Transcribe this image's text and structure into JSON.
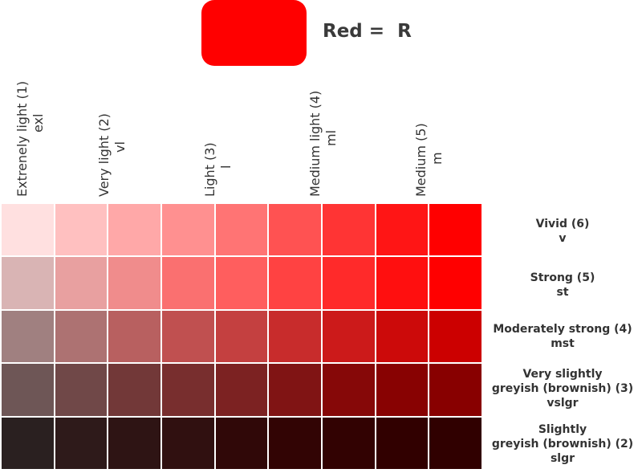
{
  "title": "Red =  R",
  "swatch_color": "#ff0000",
  "columns": [
    {
      "name": "Extrenely light (1)",
      "code": "exl"
    },
    {
      "name": "Very light (2)",
      "code": "vl"
    },
    {
      "name": "Light (3)",
      "code": "l"
    },
    {
      "name": "Medium light (4)",
      "code": "ml"
    },
    {
      "name": "Medium (5)",
      "code": "m"
    }
  ],
  "rows": [
    {
      "name": "Vivid (6)",
      "code": "v"
    },
    {
      "name": "Strong (5)",
      "code": "st"
    },
    {
      "name": "Moderately strong (4)",
      "code": "mst"
    },
    {
      "name_line1": "Very slightly",
      "name_line2": "greyish (brownish) (3)",
      "code": "vslgr"
    },
    {
      "name_line1": "Slightly",
      "name_line2": "greyish (brownish) (2)",
      "code": "slgr"
    }
  ],
  "grid_colors": [
    [
      "#ffe0e0",
      "#ffc0c0",
      "#ffa8a8",
      "#ff9090",
      "#ff7474",
      "#ff5252",
      "#ff3434",
      "#ff1515",
      "#ff0000"
    ],
    [
      "#d9b4b4",
      "#e8a0a0",
      "#f08c8c",
      "#fa7070",
      "#ff5e5e",
      "#ff4242",
      "#ff2a2a",
      "#ff0f0f",
      "#ff0000"
    ],
    [
      "#a08080",
      "#ad7272",
      "#b86060",
      "#c05050",
      "#c44040",
      "#c82c2c",
      "#cc1a1a",
      "#cc0a0a",
      "#cc0000"
    ],
    [
      "#6e5656",
      "#704848",
      "#723838",
      "#782e2e",
      "#7c2222",
      "#801414",
      "#860808",
      "#880202",
      "#880000"
    ],
    [
      "#2a2020",
      "#2e1a1a",
      "#2e1414",
      "#301010",
      "#300808",
      "#320404",
      "#320202",
      "#310000",
      "#300000"
    ]
  ]
}
